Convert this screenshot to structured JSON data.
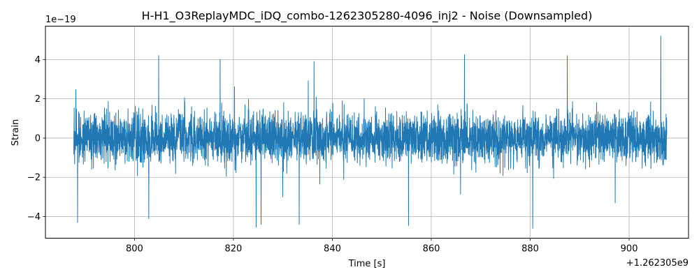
{
  "chart_data": {
    "type": "line",
    "title": "H-H1_O3ReplayMDC_iDQ_combo-1262305280-4096_inj2 - Noise (Downsampled)",
    "xlabel": "Time [s]",
    "ylabel": "Strain",
    "x_offset_label": "+1.262305e9",
    "y_scale_label": "1e−19",
    "x_offset": 1262305000,
    "y_scale": 1e-19,
    "xlim": [
      1262305782,
      1262305912
    ],
    "ylim": [
      -5.1e-19,
      5.7e-19
    ],
    "x_ticks": [
      1262305800,
      1262305820,
      1262305840,
      1262305860,
      1262305880,
      1262305900
    ],
    "x_tick_labels": [
      "800",
      "820",
      "840",
      "860",
      "880",
      "900"
    ],
    "y_ticks": [
      -4e-19,
      -2e-19,
      0,
      2e-19,
      4e-19
    ],
    "y_tick_labels": [
      "−4",
      "−2",
      "0",
      "2",
      "4"
    ],
    "grid": true,
    "series": [
      {
        "color": "#1f77b4",
        "x_start": 1262305787.7,
        "x_end": 1262305907.6,
        "rms": 8e-20,
        "peaks": [
          {
            "x": 1262305788.5,
            "y": -4.3e-19
          },
          {
            "x": 1262305804.9,
            "y": 4.2e-19
          },
          {
            "x": 1262305802.9,
            "y": -4.1e-19
          },
          {
            "x": 1262305817.3,
            "y": 4e-19
          },
          {
            "x": 1262305824.6,
            "y": -4.55e-19
          },
          {
            "x": 1262305825.6,
            "y": -4.4e-19
          },
          {
            "x": 1262305833.3,
            "y": -4.4e-19
          },
          {
            "x": 1262305836.3,
            "y": 3.9e-19
          },
          {
            "x": 1262305855.4,
            "y": -4.45e-19
          },
          {
            "x": 1262305866.7,
            "y": 4.25e-19
          },
          {
            "x": 1262305880.5,
            "y": -4.6e-19
          },
          {
            "x": 1262305887.5,
            "y": 4.2e-19
          },
          {
            "x": 1262305906.4,
            "y": 5.2e-19
          }
        ]
      }
    ]
  }
}
